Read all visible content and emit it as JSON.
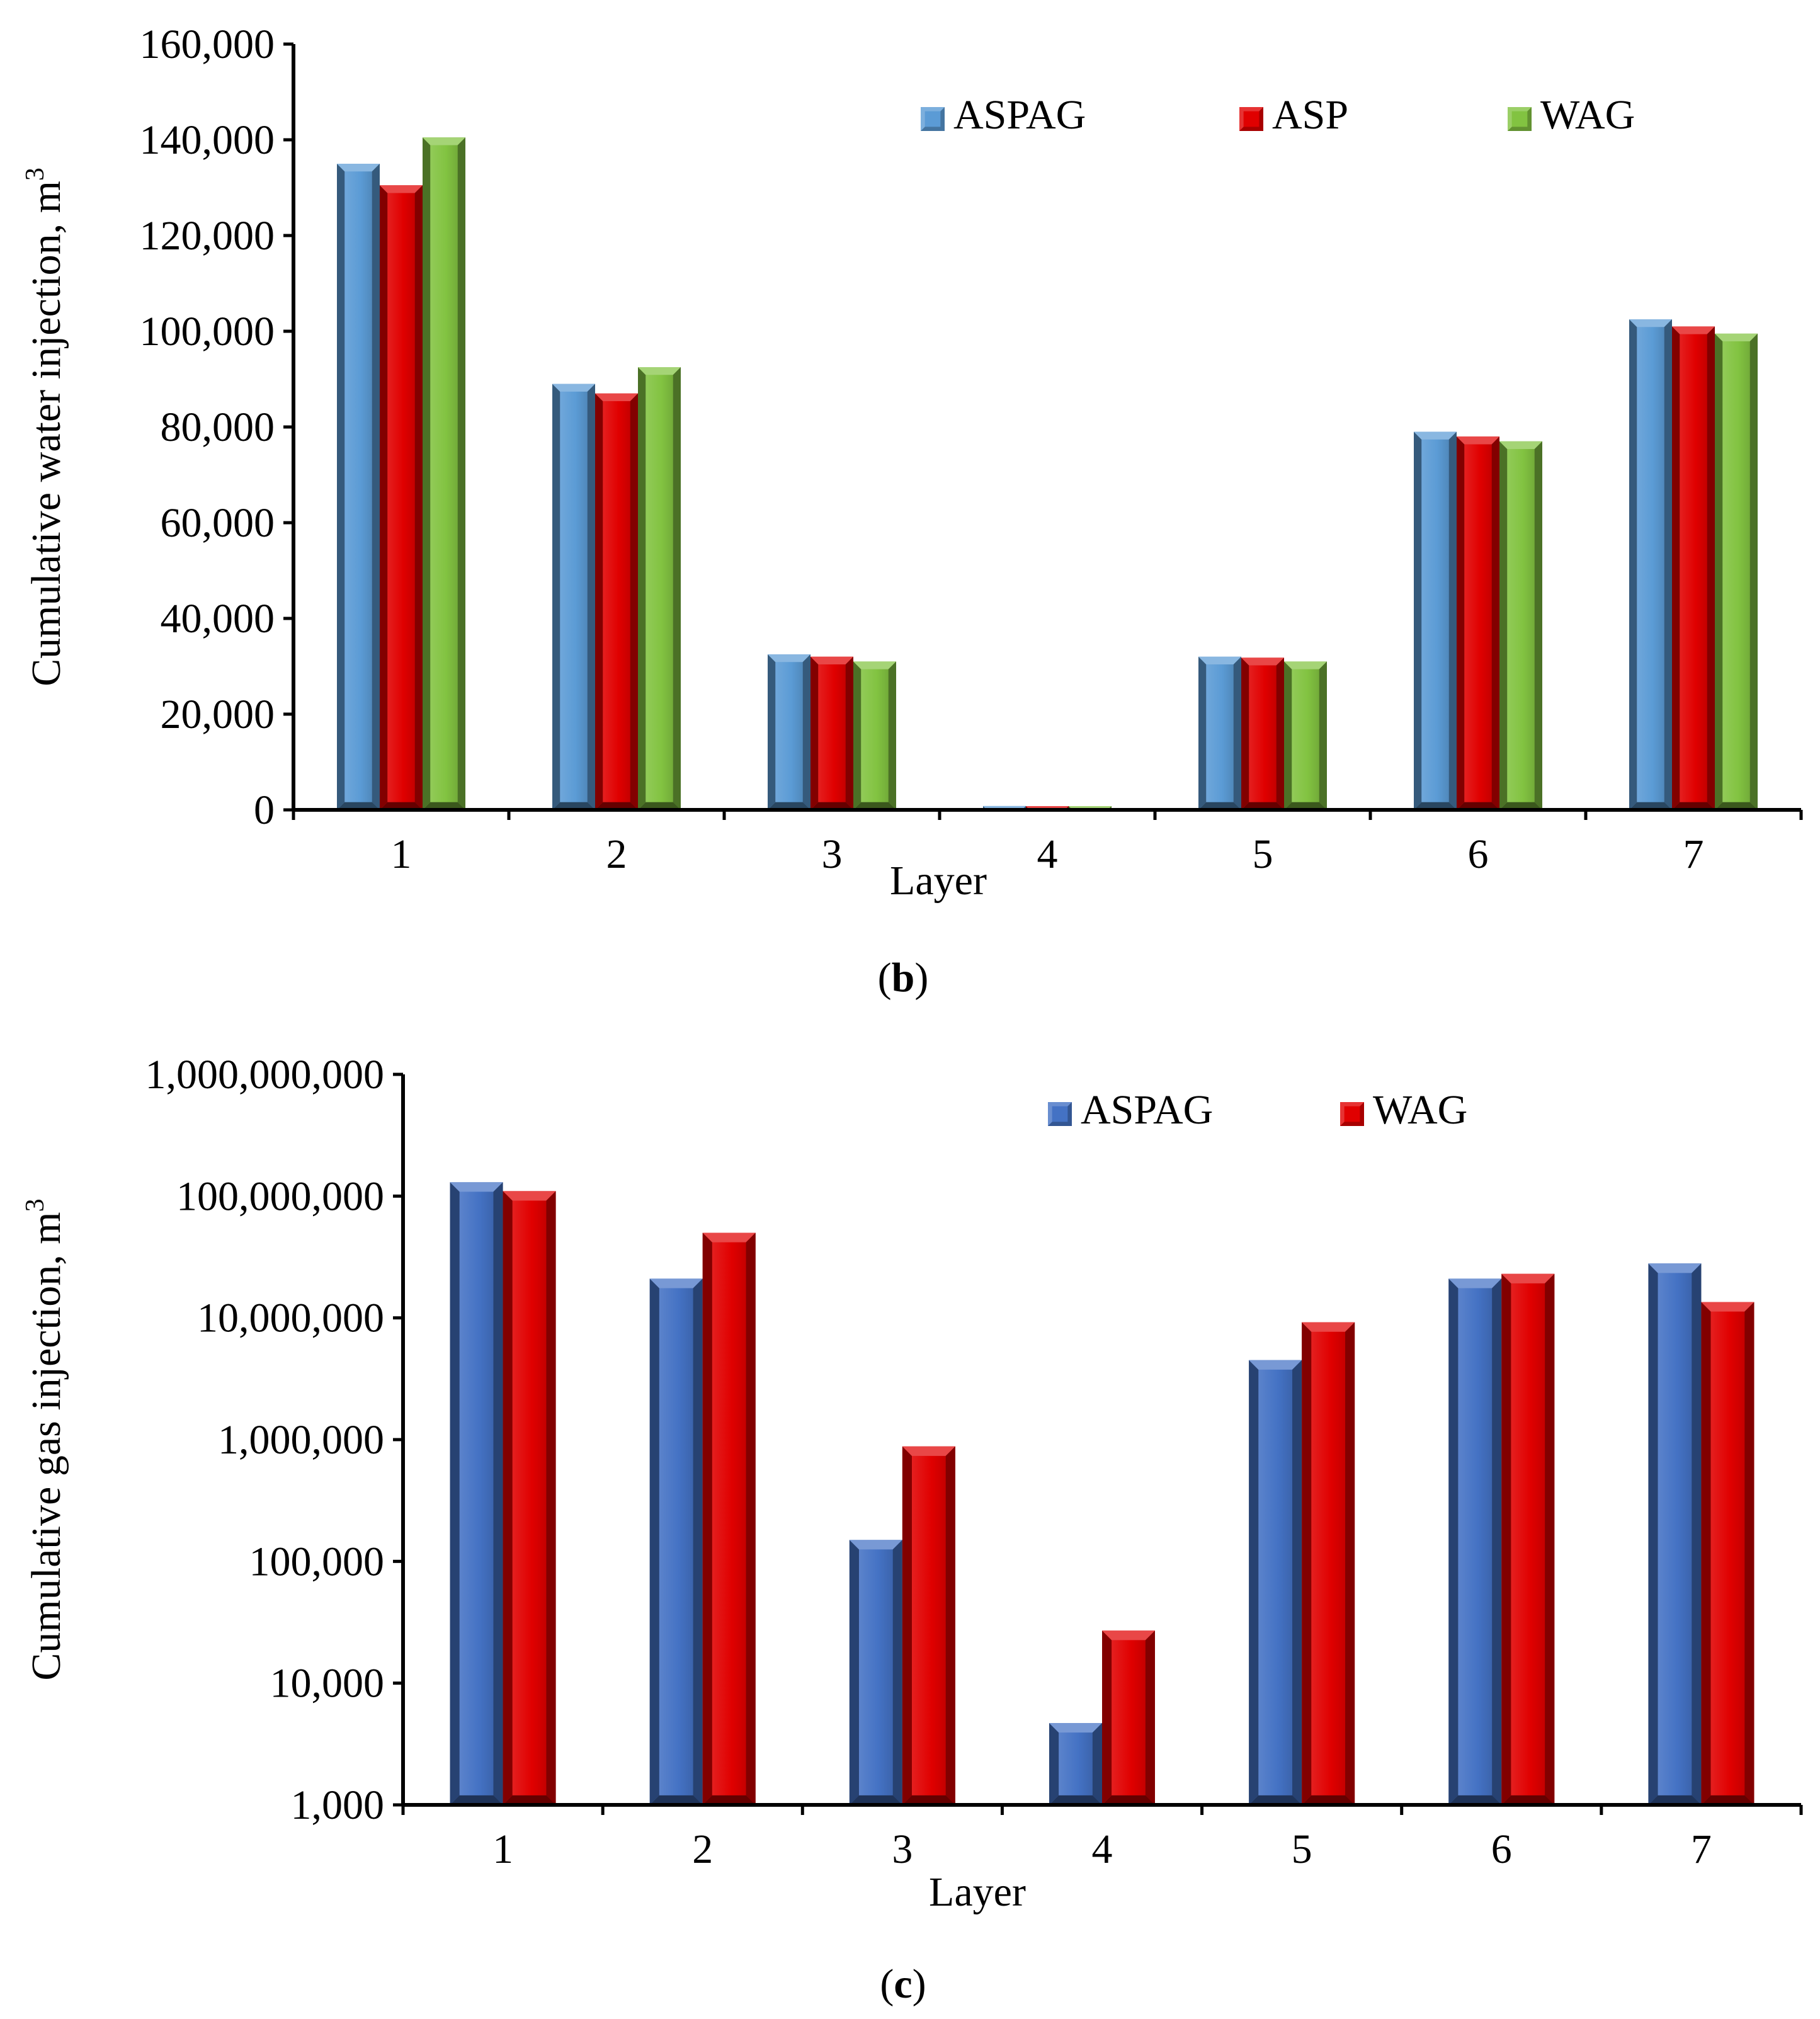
{
  "colors": {
    "ASPAG_b": "#5b9bd5",
    "ASP_b": "#e00000",
    "WAG_b": "#82c341",
    "ASPAG_c": "#4472c4",
    "WAG_c": "#e00000"
  },
  "chart_data": [
    {
      "type": "bar",
      "panel": "b",
      "caption": {
        "open": "(",
        "letter": "b",
        "close": ")"
      },
      "xlabel": "Layer",
      "ylabel": "Cumulative water injection, m",
      "ylabel_sup": "3",
      "categories": [
        "1",
        "2",
        "3",
        "4",
        "5",
        "6",
        "7"
      ],
      "ylim": [
        0,
        160000
      ],
      "yticks": [
        {
          "value": 0,
          "label": "0"
        },
        {
          "value": 20000,
          "label": "20,000"
        },
        {
          "value": 40000,
          "label": "40,000"
        },
        {
          "value": 60000,
          "label": "60,000"
        },
        {
          "value": 80000,
          "label": "80,000"
        },
        {
          "value": 100000,
          "label": "100,000"
        },
        {
          "value": 120000,
          "label": "120,000"
        },
        {
          "value": 140000,
          "label": "140,000"
        },
        {
          "value": 160000,
          "label": "160,000"
        }
      ],
      "legend_position": "top-right",
      "series": [
        {
          "name": "ASPAG",
          "values": [
            135000,
            89000,
            32500,
            800,
            32000,
            79000,
            102500
          ]
        },
        {
          "name": "ASP",
          "values": [
            130500,
            87000,
            32000,
            700,
            31800,
            78000,
            101000
          ]
        },
        {
          "name": "WAG",
          "values": [
            140500,
            92500,
            31000,
            300,
            31000,
            77000,
            99500
          ]
        }
      ]
    },
    {
      "type": "bar",
      "panel": "c",
      "caption": {
        "open": "(",
        "letter": "c",
        "close": ")"
      },
      "xlabel": "Layer",
      "ylabel": "Cumulative gas injection, m",
      "ylabel_sup": "3",
      "categories": [
        "1",
        "2",
        "3",
        "4",
        "5",
        "6",
        "7"
      ],
      "yscale": "log",
      "ylim": [
        1000,
        1000000000
      ],
      "yticks": [
        {
          "value": 1000,
          "label": "1,000"
        },
        {
          "value": 10000,
          "label": "10,000"
        },
        {
          "value": 100000,
          "label": "100,000"
        },
        {
          "value": 1000000,
          "label": "1,000,000"
        },
        {
          "value": 10000000,
          "label": "10,000,000"
        },
        {
          "value": 100000000,
          "label": "100,000,000"
        },
        {
          "value": 1000000000,
          "label": "1,000,000,000"
        }
      ],
      "legend_position": "top-right",
      "series": [
        {
          "name": "ASPAG",
          "values": [
            130000000,
            21000000,
            150000,
            4700,
            4500000,
            21000000,
            28000000
          ]
        },
        {
          "name": "WAG",
          "values": [
            110000000,
            50000000,
            880000,
            27000,
            9200000,
            23000000,
            13500000
          ]
        }
      ]
    }
  ]
}
